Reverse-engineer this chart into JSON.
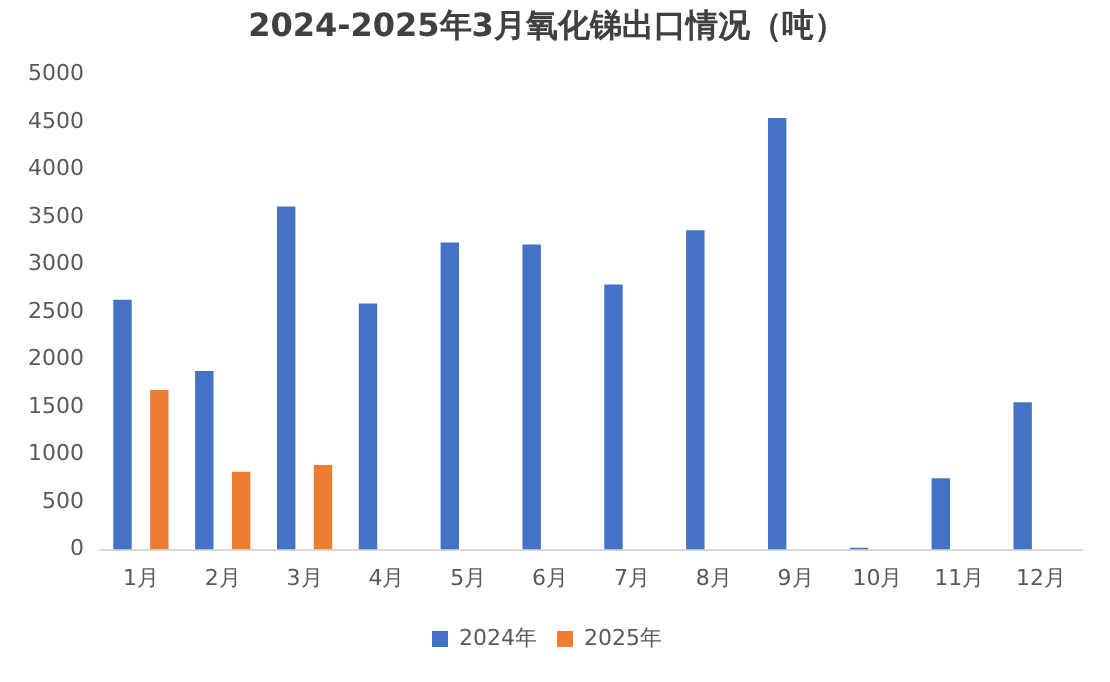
{
  "chart_data": {
    "type": "bar",
    "title": "2024-2025年3月氧化锑出口情况（吨）",
    "categories": [
      "1月",
      "2月",
      "3月",
      "4月",
      "5月",
      "6月",
      "7月",
      "8月",
      "9月",
      "10月",
      "11月",
      "12月"
    ],
    "series": [
      {
        "name": "2024年",
        "color": "#4472c4",
        "values": [
          2630,
          1880,
          3610,
          2590,
          3230,
          3210,
          2790,
          3360,
          4540,
          20,
          750,
          1550
        ]
      },
      {
        "name": "2025年",
        "color": "#ed7d31",
        "values": [
          1680,
          820,
          890,
          null,
          null,
          null,
          null,
          null,
          null,
          null,
          null,
          null
        ]
      }
    ],
    "ylim": [
      0,
      5000
    ],
    "yticks": [
      0,
      500,
      1000,
      1500,
      2000,
      2500,
      3000,
      3500,
      4000,
      4500,
      5000
    ],
    "grid": false,
    "legend": "bottom"
  }
}
